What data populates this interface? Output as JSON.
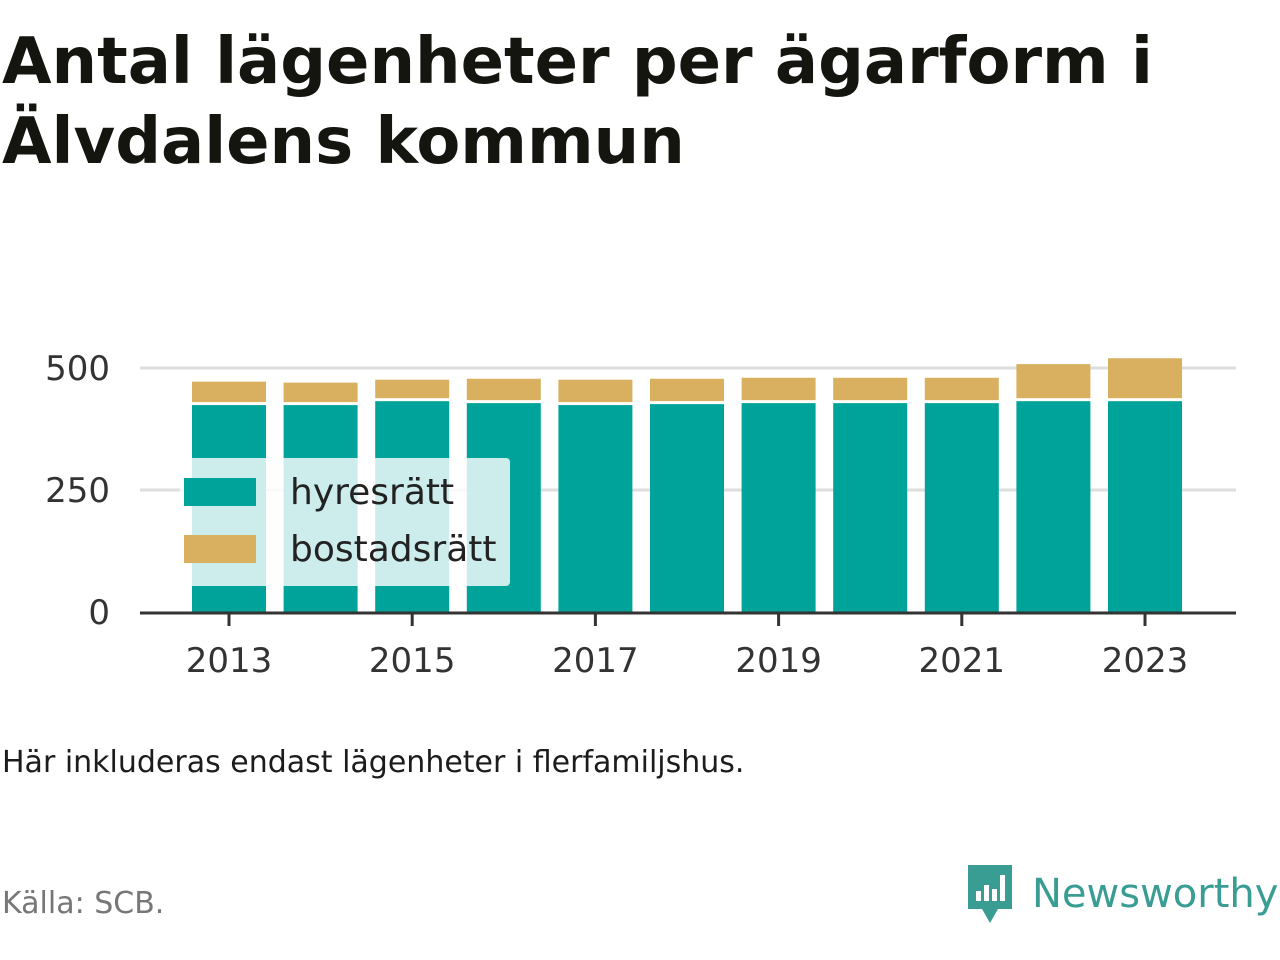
{
  "title": "Antal lägenheter per ägarform i Älvdalens kommun",
  "note": "Här inkluderas endast lägenheter i flerfamiljshus.",
  "source": "Källa: SCB.",
  "brand": {
    "name": "Newsworthy",
    "icon": "newsworthy-logo-icon",
    "color": "#3a9d93"
  },
  "chart_data": {
    "type": "bar",
    "stacked": true,
    "categories": [
      "2013",
      "2014",
      "2015",
      "2016",
      "2017",
      "2018",
      "2019",
      "2020",
      "2021",
      "2022",
      "2023"
    ],
    "series": [
      {
        "name": "hyresrätt",
        "color": "#00a39a",
        "values": [
          424,
          424,
          432,
          428,
          424,
          426,
          428,
          428,
          428,
          432,
          432
        ]
      },
      {
        "name": "bostadsrätt",
        "color": "#d9b060",
        "values": [
          48,
          46,
          44,
          50,
          52,
          52,
          52,
          52,
          52,
          76,
          88
        ]
      }
    ],
    "ylim": [
      0,
      520
    ],
    "yticks": [
      0,
      250,
      500
    ],
    "xticks": [
      "2013",
      "2015",
      "2017",
      "2019",
      "2021",
      "2023"
    ],
    "xlabel": "",
    "ylabel": "",
    "grid": true,
    "legend": "bottom-left inside"
  }
}
